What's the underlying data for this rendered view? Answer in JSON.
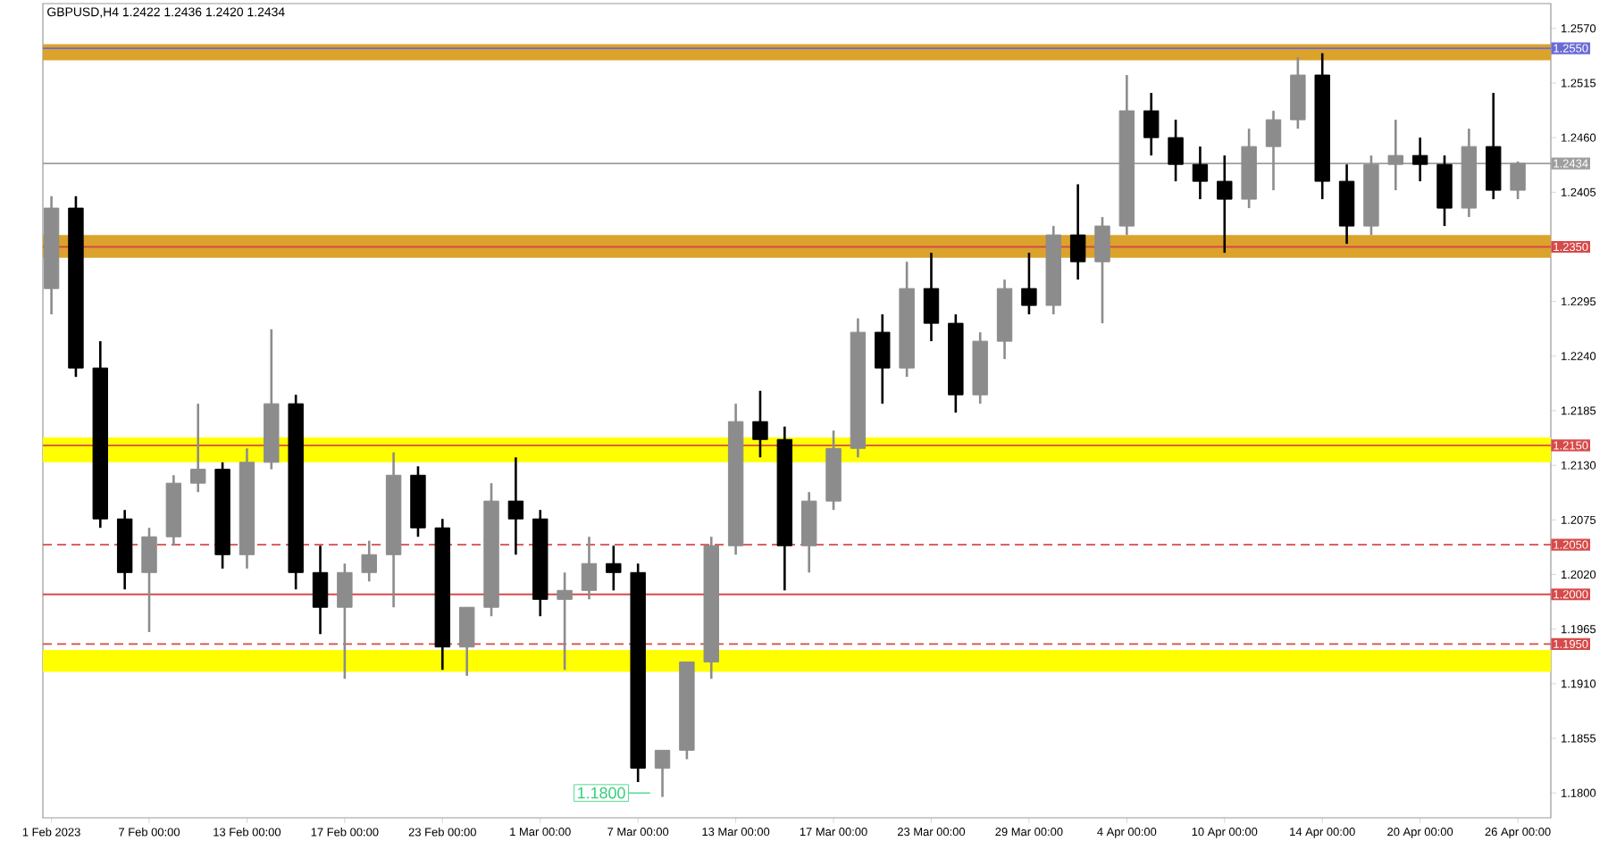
{
  "chart_data": {
    "type": "candlestick",
    "title": "GBPUSD,H4  1.2422 1.2436 1.2420 1.2434",
    "categories": [
      "1 Feb 2023",
      null,
      null,
      null,
      "7 Feb 00:00",
      null,
      null,
      null,
      "13 Feb 00:00",
      null,
      null,
      null,
      "17 Feb 00:00",
      null,
      null,
      null,
      "23 Feb 00:00",
      null,
      null,
      null,
      "1 Mar 00:00",
      null,
      null,
      null,
      "7 Mar 00:00",
      null,
      null,
      null,
      "13 Mar 00:00",
      null,
      null,
      null,
      "17 Mar 00:00",
      null,
      null,
      null,
      "23 Mar 00:00",
      null,
      null,
      null,
      "29 Mar 00:00",
      null,
      null,
      null,
      "4 Apr 00:00",
      null,
      null,
      null,
      "10 Apr 00:00",
      null,
      null,
      null,
      "14 Apr 00:00",
      null,
      null,
      null,
      "20 Apr 00:00",
      null,
      null,
      null,
      "26 Apr 00:00"
    ],
    "ohlc": [
      [
        1.2308,
        1.2401,
        1.2282,
        1.2389
      ],
      [
        1.2389,
        1.2401,
        1.2219,
        1.2228
      ],
      [
        1.2228,
        1.2255,
        1.2067,
        1.2076
      ],
      [
        1.2076,
        1.2085,
        1.2005,
        1.2022
      ],
      [
        1.2022,
        1.2067,
        1.1962,
        1.2058
      ],
      [
        1.2058,
        1.212,
        1.2049,
        1.2112
      ],
      [
        1.2112,
        1.2192,
        1.2103,
        1.2126
      ],
      [
        1.2126,
        1.2133,
        1.2026,
        1.204
      ],
      [
        1.204,
        1.2147,
        1.2026,
        1.2133
      ],
      [
        1.2133,
        1.2267,
        1.2126,
        1.2192
      ],
      [
        1.2192,
        1.2201,
        1.2005,
        1.2022
      ],
      [
        1.2022,
        1.2049,
        1.196,
        1.1987
      ],
      [
        1.1987,
        1.2031,
        1.1915,
        1.2022
      ],
      [
        1.2022,
        1.2054,
        1.2013,
        1.204
      ],
      [
        1.204,
        1.2143,
        1.1987,
        1.212
      ],
      [
        1.212,
        1.2129,
        1.2058,
        1.2067
      ],
      [
        1.2067,
        1.2076,
        1.1924,
        1.1947
      ],
      [
        1.1947,
        1.1987,
        1.1918,
        1.1987
      ],
      [
        1.1987,
        1.2112,
        1.1978,
        1.2094
      ],
      [
        1.2094,
        1.2138,
        1.204,
        1.2076
      ],
      [
        1.2076,
        1.2085,
        1.1978,
        1.1995
      ],
      [
        1.1995,
        1.2022,
        1.1924,
        1.2004
      ],
      [
        1.2004,
        1.2058,
        1.1995,
        1.2031
      ],
      [
        1.2031,
        1.2049,
        1.2004,
        1.2022
      ],
      [
        1.2022,
        1.2031,
        1.1811,
        1.1825
      ],
      [
        1.1825,
        1.1843,
        1.1796,
        1.1843
      ],
      [
        1.1843,
        1.1932,
        1.1834,
        1.1932
      ],
      [
        1.1932,
        1.2058,
        1.1915,
        1.2049
      ],
      [
        1.2049,
        1.2192,
        1.204,
        1.2174
      ],
      [
        1.2174,
        1.2205,
        1.2138,
        1.2156
      ],
      [
        1.2156,
        1.2169,
        1.2004,
        1.2049
      ],
      [
        1.2049,
        1.2103,
        1.2022,
        1.2094
      ],
      [
        1.2094,
        1.2165,
        1.2085,
        1.2147
      ],
      [
        1.2147,
        1.2278,
        1.2138,
        1.2264
      ],
      [
        1.2264,
        1.2282,
        1.2192,
        1.2228
      ],
      [
        1.2228,
        1.2335,
        1.2219,
        1.2308
      ],
      [
        1.2308,
        1.2344,
        1.2255,
        1.2273
      ],
      [
        1.2273,
        1.2282,
        1.2183,
        1.2201
      ],
      [
        1.2201,
        1.2264,
        1.2192,
        1.2255
      ],
      [
        1.2255,
        1.2317,
        1.2237,
        1.2308
      ],
      [
        1.2308,
        1.2344,
        1.2282,
        1.2291
      ],
      [
        1.2291,
        1.2371,
        1.2282,
        1.2362
      ],
      [
        1.2362,
        1.2413,
        1.2317,
        1.2335
      ],
      [
        1.2335,
        1.238,
        1.2273,
        1.2371
      ],
      [
        1.2371,
        1.2523,
        1.2362,
        1.2487
      ],
      [
        1.2487,
        1.2505,
        1.2442,
        1.246
      ],
      [
        1.246,
        1.2478,
        1.2416,
        1.2433
      ],
      [
        1.2433,
        1.2451,
        1.2398,
        1.2416
      ],
      [
        1.2416,
        1.2442,
        1.2344,
        1.2398
      ],
      [
        1.2398,
        1.2469,
        1.2389,
        1.2451
      ],
      [
        1.2451,
        1.2487,
        1.2407,
        1.2478
      ],
      [
        1.2478,
        1.2541,
        1.2469,
        1.2523
      ],
      [
        1.2523,
        1.2545,
        1.2398,
        1.2416
      ],
      [
        1.2416,
        1.2433,
        1.2353,
        1.2371
      ],
      [
        1.2371,
        1.2442,
        1.2362,
        1.2433
      ],
      [
        1.2433,
        1.2478,
        1.2407,
        1.2442
      ],
      [
        1.2442,
        1.246,
        1.2416,
        1.2433
      ],
      [
        1.2433,
        1.2442,
        1.2371,
        1.2389
      ],
      [
        1.2389,
        1.2469,
        1.238,
        1.2451
      ],
      [
        1.2451,
        1.2505,
        1.2398,
        1.2407
      ],
      [
        1.2407,
        1.2436,
        1.2398,
        1.2434
      ]
    ],
    "colors": [
      "#8c8c8c",
      "#000000",
      "#000000",
      "#000000",
      "#8c8c8c",
      "#8c8c8c",
      "#8c8c8c",
      "#000000",
      "#8c8c8c",
      "#8c8c8c",
      "#000000",
      "#000000",
      "#8c8c8c",
      "#8c8c8c",
      "#8c8c8c",
      "#000000",
      "#000000",
      "#8c8c8c",
      "#8c8c8c",
      "#000000",
      "#000000",
      "#8c8c8c",
      "#8c8c8c",
      "#000000",
      "#000000",
      "#8c8c8c",
      "#8c8c8c",
      "#8c8c8c",
      "#8c8c8c",
      "#000000",
      "#000000",
      "#8c8c8c",
      "#8c8c8c",
      "#8c8c8c",
      "#000000",
      "#8c8c8c",
      "#000000",
      "#000000",
      "#8c8c8c",
      "#8c8c8c",
      "#000000",
      "#8c8c8c",
      "#000000",
      "#8c8c8c",
      "#8c8c8c",
      "#000000",
      "#000000",
      "#000000",
      "#000000",
      "#8c8c8c",
      "#8c8c8c",
      "#8c8c8c",
      "#000000",
      "#000000",
      "#8c8c8c",
      "#8c8c8c",
      "#000000",
      "#000000",
      "#8c8c8c",
      "#000000",
      "#8c8c8c"
    ],
    "ylim": [
      1.1775,
      1.2595
    ],
    "yticks": [
      {
        "value": 1.257,
        "label": "1.2570"
      },
      {
        "value": 1.2515,
        "label": "1.2515"
      },
      {
        "value": 1.246,
        "label": "1.2460"
      },
      {
        "value": 1.2405,
        "label": "1.2405"
      },
      {
        "value": 1.2295,
        "label": "1.2295"
      },
      {
        "value": 1.224,
        "label": "1.2240"
      },
      {
        "value": 1.2185,
        "label": "1.2185"
      },
      {
        "value": 1.213,
        "label": "1.2130"
      },
      {
        "value": 1.2075,
        "label": "1.2075"
      },
      {
        "value": 1.202,
        "label": "1.2020"
      },
      {
        "value": 1.1965,
        "label": "1.1965"
      },
      {
        "value": 1.191,
        "label": "1.1910"
      },
      {
        "value": 1.1855,
        "label": "1.1855"
      },
      {
        "value": 1.18,
        "label": "1.1800"
      }
    ],
    "bands": [
      {
        "axis": "y",
        "from": 1.2538,
        "to": 1.2554,
        "color": "#dba32b"
      },
      {
        "axis": "y",
        "from": 1.2339,
        "to": 1.2362,
        "color": "#dba32b"
      },
      {
        "axis": "y",
        "from": 1.2133,
        "to": 1.2158,
        "color": "#ffff00"
      },
      {
        "axis": "y",
        "from": 1.1922,
        "to": 1.1944,
        "color": "#ffff00"
      }
    ],
    "ref_lines": [
      {
        "axis": "y",
        "value": 1.255,
        "label": "1.2550",
        "color": "#6b6bd6"
      },
      {
        "axis": "y",
        "value": 1.2434,
        "label": "1.2434",
        "color": "#9e9e9e"
      },
      {
        "axis": "y",
        "value": 1.235,
        "label": "1.2350",
        "color": "#d64a4a"
      },
      {
        "axis": "y",
        "value": 1.215,
        "label": "1.2150",
        "color": "#d64a4a"
      },
      {
        "axis": "y",
        "value": 1.205,
        "label": "1.2050",
        "color": "#d64a4a",
        "line_style": "dashed"
      },
      {
        "axis": "y",
        "value": 1.2,
        "label": "1.2000",
        "color": "#d64a4a"
      },
      {
        "axis": "y",
        "value": 1.195,
        "label": "1.1950",
        "color": "#d64a4a",
        "line_style": "dashed"
      }
    ],
    "annotations": [
      {
        "text": "1.1800",
        "y": 1.18
      }
    ]
  }
}
